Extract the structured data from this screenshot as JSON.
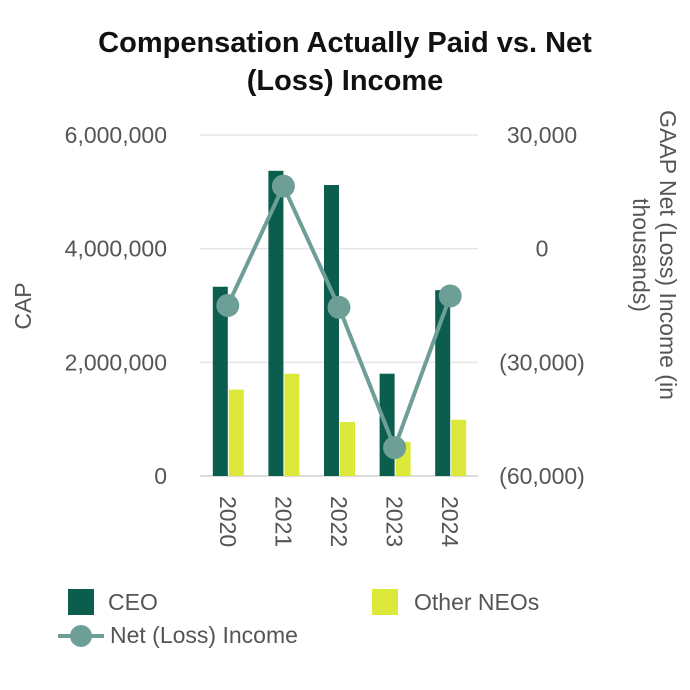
{
  "chart_data": {
    "type": "bar",
    "title_lines": [
      "Compensation Actually Paid vs. Net",
      "(Loss) Income"
    ],
    "categories": [
      "2020",
      "2021",
      "2022",
      "2023",
      "2024"
    ],
    "series": [
      {
        "name": "CEO",
        "type": "bar",
        "axis": "left",
        "color": "#0b5e4e",
        "values": [
          3330000,
          5370000,
          5120000,
          1800000,
          3270000
        ]
      },
      {
        "name": "Other NEOs",
        "type": "bar",
        "axis": "left",
        "color": "#dce83a",
        "values": [
          1520000,
          1800000,
          950000,
          600000,
          990000
        ]
      },
      {
        "name": "Net (Loss) Income",
        "type": "line",
        "axis": "right",
        "color": "#6e9f97",
        "values": [
          -15000,
          16500,
          -15500,
          -52500,
          -12500
        ]
      }
    ],
    "left_axis": {
      "label": "CAP",
      "ylim": [
        0,
        6000000
      ],
      "ticks": [
        0,
        2000000,
        4000000,
        6000000
      ],
      "tick_labels": [
        "0",
        "2,000,000",
        "4,000,000",
        "6,000,000"
      ]
    },
    "right_axis": {
      "label_lines": [
        "GAAP Net (Loss) Income (in",
        "thousands)"
      ],
      "ylim": [
        -60000,
        30000
      ],
      "ticks": [
        -60000,
        -30000,
        0,
        30000
      ],
      "tick_labels": [
        "(60,000)",
        "(30,000)",
        "0",
        "30,000"
      ]
    },
    "grid": true,
    "legend_position": "bottom"
  }
}
